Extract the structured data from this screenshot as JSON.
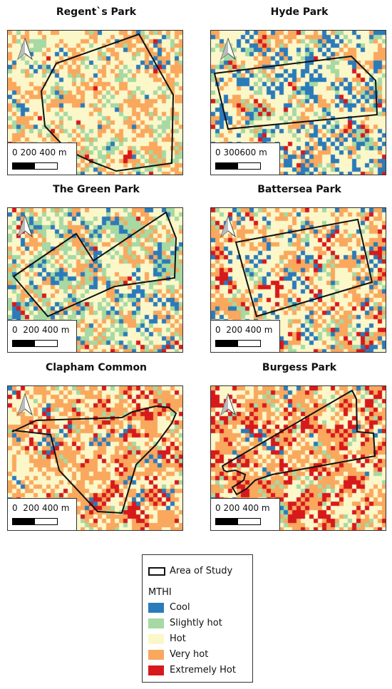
{
  "panels": [
    {
      "title": "Regent`s Park",
      "scale": [
        "0",
        "200",
        "400 m"
      ],
      "seed": 11,
      "bias": [
        0.06,
        0.11,
        0.48,
        0.33,
        0.02
      ]
    },
    {
      "title": "Hyde Park",
      "scale": [
        "0",
        "300",
        "600 m"
      ],
      "seed": 23,
      "bias": [
        0.22,
        0.12,
        0.42,
        0.2,
        0.04
      ]
    },
    {
      "title": "The Green Park",
      "scale": [
        "0",
        "200",
        "400 m"
      ],
      "seed": 37,
      "bias": [
        0.16,
        0.3,
        0.34,
        0.18,
        0.02
      ]
    },
    {
      "title": "Battersea Park",
      "scale": [
        "0",
        "200",
        "400 m"
      ],
      "seed": 41,
      "bias": [
        0.14,
        0.08,
        0.44,
        0.24,
        0.1
      ]
    },
    {
      "title": "Clapham Common",
      "scale": [
        "0",
        "200",
        "400 m"
      ],
      "seed": 53,
      "bias": [
        0.02,
        0.06,
        0.36,
        0.44,
        0.12
      ]
    },
    {
      "title": "Burgess Park",
      "scale": [
        "0",
        "200",
        "400 m"
      ],
      "seed": 67,
      "bias": [
        0.03,
        0.05,
        0.3,
        0.42,
        0.2
      ]
    }
  ],
  "legend": {
    "area_label": "Area of Study",
    "scale_title": "MTHI",
    "classes": [
      {
        "label": "Cool",
        "color": "#2b7bba"
      },
      {
        "label": "Slightly hot",
        "color": "#a6d9a3"
      },
      {
        "label": "Hot",
        "color": "#fcf7c9"
      },
      {
        "label": "Very hot",
        "color": "#f9a85e"
      },
      {
        "label": "Extremely Hot",
        "color": "#d7191c"
      }
    ]
  }
}
